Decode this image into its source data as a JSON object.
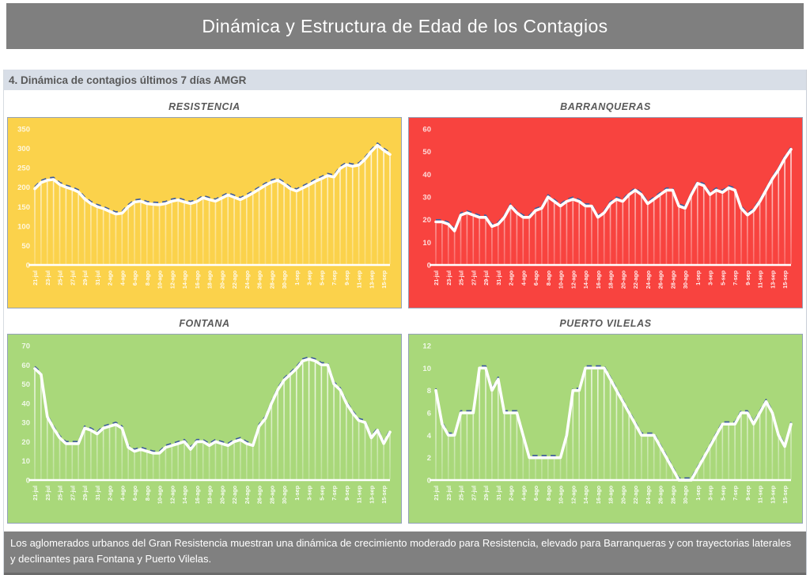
{
  "header": {
    "title": "Dinámica y Estructura de Edad de los Contagios"
  },
  "section": {
    "label": "4. Dinámica de contagios  últimos 7 días AMGR"
  },
  "line_colors": {
    "main": "#FFFFFF",
    "shadow": "#3E5C9A"
  },
  "chart_data": {
    "type": "line",
    "x_tick_every": 2,
    "x": [
      "21-jul",
      "22-jul",
      "23-jul",
      "24-jul",
      "25-jul",
      "26-jul",
      "27-jul",
      "28-jul",
      "29-jul",
      "30-jul",
      "31-jul",
      "1-ago",
      "2-ago",
      "3-ago",
      "4-ago",
      "5-ago",
      "6-ago",
      "7-ago",
      "8-ago",
      "9-ago",
      "10-ago",
      "11-ago",
      "12-ago",
      "13-ago",
      "14-ago",
      "15-ago",
      "16-ago",
      "17-ago",
      "18-ago",
      "19-ago",
      "20-ago",
      "21-ago",
      "22-ago",
      "23-ago",
      "24-ago",
      "25-ago",
      "26-ago",
      "27-ago",
      "28-ago",
      "29-ago",
      "30-ago",
      "31-ago",
      "1-sep",
      "2-sep",
      "3-sep",
      "4-sep",
      "5-sep",
      "6-sep",
      "7-sep",
      "8-sep",
      "9-sep",
      "10-sep",
      "11-sep",
      "12-sep",
      "13-sep",
      "14-sep",
      "15-sep",
      "16-sep"
    ],
    "charts": [
      {
        "title": "RESISTENCIA",
        "bg": "#FBD24B",
        "ylim": [
          0,
          350
        ],
        "ytick": 50,
        "values": [
          196,
          212,
          218,
          220,
          207,
          200,
          195,
          188,
          170,
          158,
          150,
          145,
          138,
          131,
          133,
          150,
          162,
          164,
          158,
          156,
          155,
          158,
          164,
          167,
          162,
          158,
          163,
          173,
          168,
          164,
          172,
          180,
          174,
          168,
          176,
          185,
          195,
          205,
          213,
          218,
          208,
          196,
          190,
          198,
          206,
          215,
          222,
          230,
          226,
          248,
          258,
          254,
          257,
          272,
          292,
          308,
          295,
          284
        ]
      },
      {
        "title": "BARRANQUERAS",
        "bg": "#F8433F",
        "ylim": [
          0,
          60
        ],
        "ytick": 10,
        "values": [
          19,
          19,
          18,
          15,
          22,
          23,
          22,
          21,
          21,
          17,
          18,
          21,
          26,
          23,
          21,
          21,
          24,
          25,
          30,
          28,
          26,
          28,
          29,
          28,
          26,
          26,
          21,
          23,
          27,
          29,
          28,
          31,
          33,
          31,
          27,
          29,
          31,
          33,
          33,
          26,
          25,
          31,
          36,
          35,
          31,
          33,
          32,
          34,
          33,
          25,
          22,
          24,
          28,
          33,
          38,
          42,
          47,
          51
        ]
      },
      {
        "title": "FONTANA",
        "bg": "#A9D87A",
        "ylim": [
          0,
          70
        ],
        "ytick": 10,
        "values": [
          58,
          55,
          33,
          27,
          22,
          19,
          19,
          19,
          27,
          26,
          24,
          27,
          28,
          29,
          27,
          17,
          15,
          16,
          15,
          14,
          14,
          17,
          18,
          19,
          20,
          16,
          20,
          20,
          18,
          20,
          19,
          18,
          20,
          21,
          19,
          18,
          28,
          32,
          40,
          47,
          52,
          55,
          58,
          62,
          63,
          62,
          60,
          60,
          50,
          47,
          40,
          35,
          31,
          30,
          22,
          26,
          19,
          25
        ]
      },
      {
        "title": "PUERTO VILELAS",
        "bg": "#A9D87A",
        "ylim": [
          0,
          12
        ],
        "ytick": 2,
        "values": [
          8,
          5,
          4,
          4,
          6,
          6,
          6,
          10,
          10,
          8,
          9,
          6,
          6,
          6,
          4,
          2,
          2,
          2,
          2,
          2,
          2,
          4,
          8,
          8,
          10,
          10,
          10,
          10,
          9,
          8,
          7,
          6,
          5,
          4,
          4,
          4,
          3,
          2,
          1,
          0,
          0,
          0,
          1,
          2,
          3,
          4,
          5,
          5,
          5,
          6,
          6,
          5,
          6,
          7,
          6,
          4,
          3,
          5
        ]
      }
    ]
  },
  "footer": {
    "text": "Los aglomerados urbanos del Gran Resistencia muestran una dinámica de crecimiento moderado para Resistencia, elevado para Barranqueras y  con trayectorias laterales y declinantes para Fontana y Puerto Vilelas."
  }
}
